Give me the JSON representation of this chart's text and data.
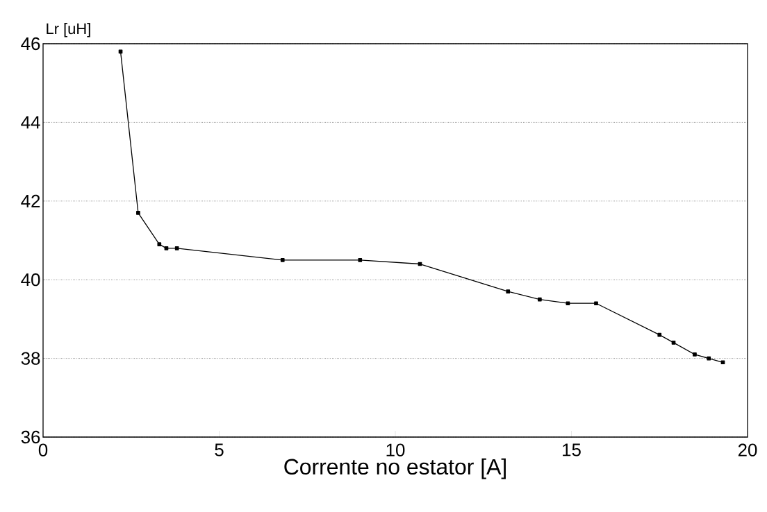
{
  "chart_data": {
    "type": "line",
    "xlabel": "Corrente no estator [A]",
    "ylabel": "Lr [uH]",
    "x": [
      2.2,
      2.7,
      3.3,
      3.5,
      3.8,
      6.8,
      9.0,
      10.7,
      13.2,
      14.1,
      14.9,
      15.7,
      17.5,
      17.9,
      18.5,
      18.9,
      19.3
    ],
    "series": [
      {
        "color": "#000000",
        "values": [
          45.8,
          41.7,
          40.9,
          40.8,
          40.8,
          40.5,
          40.5,
          40.4,
          39.7,
          39.5,
          39.4,
          39.4,
          38.6,
          38.4,
          38.1,
          38.0,
          37.9
        ]
      }
    ],
    "xlim": [
      0,
      20
    ],
    "xticks": [
      0,
      5,
      10,
      15,
      20
    ],
    "ylim": [
      36,
      46
    ],
    "yticks": [
      36,
      38,
      40,
      42,
      44,
      46
    ],
    "grid": "y",
    "marker": "square",
    "line_style": "solid"
  }
}
